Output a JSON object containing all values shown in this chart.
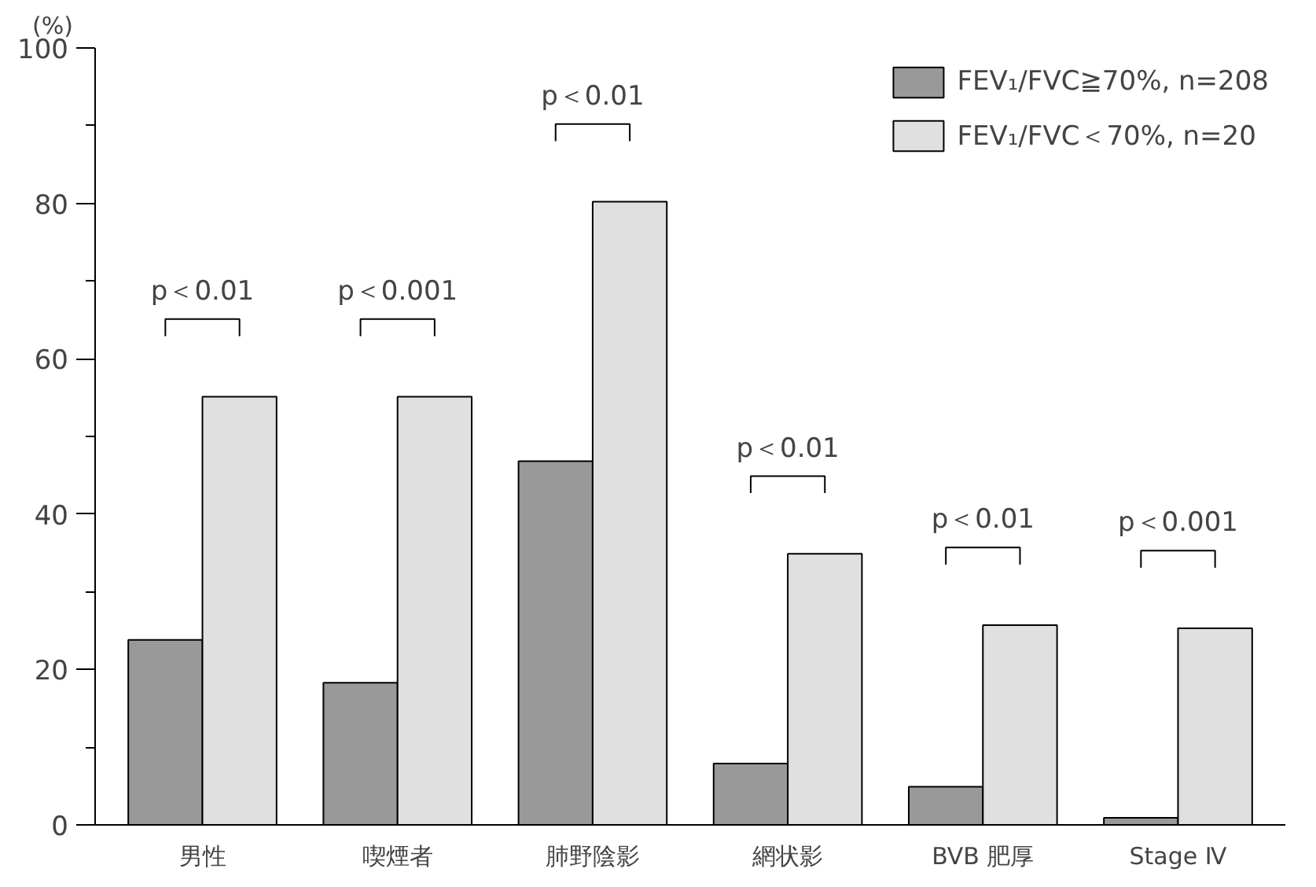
{
  "chart_data": {
    "type": "bar",
    "ylabel": "(%)",
    "categories": [
      "男性",
      "喫煙者",
      "肺野陰影",
      "網状影",
      "BVB 肥厚",
      "Stage Ⅳ"
    ],
    "series": [
      {
        "name": "FEV₁/FVC≧70%, n=208",
        "color": "#999999",
        "values": [
          23.8,
          18.3,
          46.8,
          7.9,
          4.9,
          0.9
        ]
      },
      {
        "name": "FEV₁/FVC＜70%, n=20",
        "color": "#e0e0e0",
        "values": [
          55.1,
          55.1,
          80.2,
          34.9,
          25.7,
          25.3
        ]
      }
    ],
    "ylim": [
      0,
      100
    ],
    "yticks": [
      0,
      {
        "value": 10,
        "label": null
      },
      20,
      {
        "value": 30,
        "label": null
      },
      40,
      {
        "value": 50,
        "label": null
      },
      60,
      {
        "value": 70,
        "label": null
      },
      80,
      {
        "value": 90,
        "label": null
      },
      100
    ],
    "grid": false,
    "legend": "top right",
    "annotations": [
      "p＜0.01",
      "p＜0.001",
      "p＜0.01",
      "p＜0.01",
      "p＜0.01",
      "p＜0.001"
    ]
  }
}
